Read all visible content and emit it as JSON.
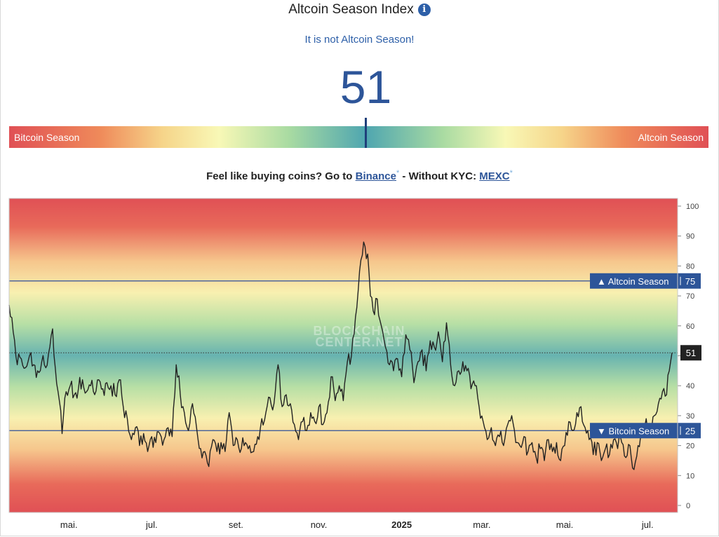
{
  "header": {
    "title": "Altcoin Season Index",
    "info_icon": "info-icon",
    "status": "It is not Altcoin Season!",
    "value": "51"
  },
  "season_bar": {
    "left_label": "Bitcoin Season",
    "right_label": "Altcoin Season",
    "marker_value": 51
  },
  "promo": {
    "text1": "Feel like buying coins? Go to ",
    "link1": "Binance",
    "mark1": "*",
    "text2": " - Without KYC: ",
    "link2": "MEXC",
    "mark2": "*"
  },
  "watermark": [
    "BLOCKCHAIN",
    "CENTER.NET"
  ],
  "colors": {
    "accent": "#2d5599",
    "line": "#222222",
    "threshold": "#2f4f9a",
    "red": "#e05055",
    "teal": "#4fa6b0",
    "yellow": "#f8f8b6"
  },
  "chart_data": {
    "type": "line",
    "title": "",
    "xlabel": "",
    "ylabel": "",
    "ylim": [
      0,
      100
    ],
    "yticks": [
      0,
      10,
      20,
      30,
      40,
      50,
      60,
      70,
      80,
      90,
      100
    ],
    "grid": false,
    "x_start": "2024-03-18",
    "x_end": "2025-07-19",
    "xticks": [
      {
        "date": "2024-05-01",
        "label": "mai."
      },
      {
        "date": "2024-07-01",
        "label": "jul."
      },
      {
        "date": "2024-09-01",
        "label": "set."
      },
      {
        "date": "2024-11-01",
        "label": "nov."
      },
      {
        "date": "2025-01-01",
        "label": "2025"
      },
      {
        "date": "2025-03-01",
        "label": "mar."
      },
      {
        "date": "2025-05-01",
        "label": "mai."
      },
      {
        "date": "2025-07-01",
        "label": "jul."
      }
    ],
    "thresholds": [
      {
        "value": 75,
        "label": "▲ Altcoin Season",
        "num": "75"
      },
      {
        "value": 25,
        "label": "▼ Bitcoin Season",
        "num": "25"
      }
    ],
    "current": {
      "value": 51,
      "label": "51"
    },
    "series": [
      {
        "values": [
          [
            "2024-03-18",
            67
          ],
          [
            "2024-03-21",
            58
          ],
          [
            "2024-03-24",
            47
          ],
          [
            "2024-03-27",
            49
          ],
          [
            "2024-03-30",
            46
          ],
          [
            "2024-04-02",
            50
          ],
          [
            "2024-04-05",
            47
          ],
          [
            "2024-04-08",
            45
          ],
          [
            "2024-04-11",
            48
          ],
          [
            "2024-04-14",
            46
          ],
          [
            "2024-04-17",
            53
          ],
          [
            "2024-04-19",
            59
          ],
          [
            "2024-04-21",
            46
          ],
          [
            "2024-04-24",
            35
          ],
          [
            "2024-04-26",
            24
          ],
          [
            "2024-04-29",
            38
          ],
          [
            "2024-05-02",
            40
          ],
          [
            "2024-05-05",
            37
          ],
          [
            "2024-05-08",
            39
          ],
          [
            "2024-05-11",
            42
          ],
          [
            "2024-05-14",
            38
          ],
          [
            "2024-05-17",
            40
          ],
          [
            "2024-05-20",
            37
          ],
          [
            "2024-05-23",
            42
          ],
          [
            "2024-05-26",
            39
          ],
          [
            "2024-05-29",
            41
          ],
          [
            "2024-06-01",
            40
          ],
          [
            "2024-06-04",
            37
          ],
          [
            "2024-06-07",
            42
          ],
          [
            "2024-06-10",
            33
          ],
          [
            "2024-06-13",
            29
          ],
          [
            "2024-06-16",
            22
          ],
          [
            "2024-06-19",
            26
          ],
          [
            "2024-06-22",
            20
          ],
          [
            "2024-06-25",
            24
          ],
          [
            "2024-06-28",
            18
          ],
          [
            "2024-07-01",
            23
          ],
          [
            "2024-07-04",
            21
          ],
          [
            "2024-07-07",
            24
          ],
          [
            "2024-07-10",
            22
          ],
          [
            "2024-07-13",
            26
          ],
          [
            "2024-07-16",
            23
          ],
          [
            "2024-07-19",
            47
          ],
          [
            "2024-07-22",
            37
          ],
          [
            "2024-07-25",
            31
          ],
          [
            "2024-07-28",
            25
          ],
          [
            "2024-07-31",
            34
          ],
          [
            "2024-08-03",
            26
          ],
          [
            "2024-08-06",
            19
          ],
          [
            "2024-08-09",
            18
          ],
          [
            "2024-08-12",
            13
          ],
          [
            "2024-08-15",
            22
          ],
          [
            "2024-08-18",
            18
          ],
          [
            "2024-08-21",
            21
          ],
          [
            "2024-08-24",
            18
          ],
          [
            "2024-08-27",
            31
          ],
          [
            "2024-08-30",
            20
          ],
          [
            "2024-09-02",
            22
          ],
          [
            "2024-09-05",
            19
          ],
          [
            "2024-09-08",
            21
          ],
          [
            "2024-09-11",
            20
          ],
          [
            "2024-09-14",
            18
          ],
          [
            "2024-09-17",
            23
          ],
          [
            "2024-09-20",
            29
          ],
          [
            "2024-09-23",
            31
          ],
          [
            "2024-09-26",
            36
          ],
          [
            "2024-09-29",
            34
          ],
          [
            "2024-10-02",
            47
          ],
          [
            "2024-10-05",
            33
          ],
          [
            "2024-10-08",
            37
          ],
          [
            "2024-10-11",
            34
          ],
          [
            "2024-10-14",
            27
          ],
          [
            "2024-10-17",
            22
          ],
          [
            "2024-10-20",
            28
          ],
          [
            "2024-10-23",
            25
          ],
          [
            "2024-10-26",
            31
          ],
          [
            "2024-10-29",
            28
          ],
          [
            "2024-11-01",
            33
          ],
          [
            "2024-11-04",
            27
          ],
          [
            "2024-11-07",
            31
          ],
          [
            "2024-11-10",
            43
          ],
          [
            "2024-11-13",
            35
          ],
          [
            "2024-11-16",
            40
          ],
          [
            "2024-11-19",
            35
          ],
          [
            "2024-11-22",
            48
          ],
          [
            "2024-11-25",
            50
          ],
          [
            "2024-11-28",
            63
          ],
          [
            "2024-11-30",
            72
          ],
          [
            "2024-12-02",
            82
          ],
          [
            "2024-12-04",
            88
          ],
          [
            "2024-12-07",
            84
          ],
          [
            "2024-12-09",
            70
          ],
          [
            "2024-12-11",
            65
          ],
          [
            "2024-12-14",
            69
          ],
          [
            "2024-12-17",
            60
          ],
          [
            "2024-12-20",
            53
          ],
          [
            "2024-12-23",
            47
          ],
          [
            "2024-12-26",
            45
          ],
          [
            "2024-12-29",
            49
          ],
          [
            "2025-01-01",
            43
          ],
          [
            "2025-01-04",
            57
          ],
          [
            "2025-01-07",
            52
          ],
          [
            "2025-01-10",
            41
          ],
          [
            "2025-01-13",
            48
          ],
          [
            "2025-01-16",
            52
          ],
          [
            "2025-01-19",
            45
          ],
          [
            "2025-01-22",
            55
          ],
          [
            "2025-01-25",
            53
          ],
          [
            "2025-01-28",
            58
          ],
          [
            "2025-01-31",
            48
          ],
          [
            "2025-02-03",
            61
          ],
          [
            "2025-02-06",
            47
          ],
          [
            "2025-02-09",
            40
          ],
          [
            "2025-02-12",
            45
          ],
          [
            "2025-02-15",
            48
          ],
          [
            "2025-02-18",
            45
          ],
          [
            "2025-02-21",
            39
          ],
          [
            "2025-02-24",
            40
          ],
          [
            "2025-02-27",
            33
          ],
          [
            "2025-03-02",
            28
          ],
          [
            "2025-03-05",
            22
          ],
          [
            "2025-03-08",
            26
          ],
          [
            "2025-03-11",
            20
          ],
          [
            "2025-03-14",
            23
          ],
          [
            "2025-03-17",
            20
          ],
          [
            "2025-03-20",
            27
          ],
          [
            "2025-03-23",
            30
          ],
          [
            "2025-03-26",
            21
          ],
          [
            "2025-03-29",
            20
          ],
          [
            "2025-04-01",
            23
          ],
          [
            "2025-04-04",
            18
          ],
          [
            "2025-04-07",
            21
          ],
          [
            "2025-04-10",
            16
          ],
          [
            "2025-04-13",
            19
          ],
          [
            "2025-04-16",
            15
          ],
          [
            "2025-04-19",
            22
          ],
          [
            "2025-04-22",
            18
          ],
          [
            "2025-04-25",
            21
          ],
          [
            "2025-04-28",
            15
          ],
          [
            "2025-05-01",
            20
          ],
          [
            "2025-05-04",
            28
          ],
          [
            "2025-05-07",
            25
          ],
          [
            "2025-05-10",
            31
          ],
          [
            "2025-05-13",
            33
          ],
          [
            "2025-05-16",
            26
          ],
          [
            "2025-05-19",
            22
          ],
          [
            "2025-05-22",
            17
          ],
          [
            "2025-05-25",
            21
          ],
          [
            "2025-05-28",
            15
          ],
          [
            "2025-05-31",
            19
          ],
          [
            "2025-06-03",
            17
          ],
          [
            "2025-06-06",
            22
          ],
          [
            "2025-06-09",
            19
          ],
          [
            "2025-06-12",
            21
          ],
          [
            "2025-06-15",
            16
          ],
          [
            "2025-06-18",
            20
          ],
          [
            "2025-06-21",
            12
          ],
          [
            "2025-06-24",
            20
          ],
          [
            "2025-06-27",
            23
          ],
          [
            "2025-06-30",
            29
          ],
          [
            "2025-07-03",
            26
          ],
          [
            "2025-07-06",
            30
          ],
          [
            "2025-07-09",
            34
          ],
          [
            "2025-07-12",
            38
          ],
          [
            "2025-07-15",
            37
          ],
          [
            "2025-07-17",
            45
          ],
          [
            "2025-07-19",
            51
          ]
        ]
      }
    ]
  }
}
